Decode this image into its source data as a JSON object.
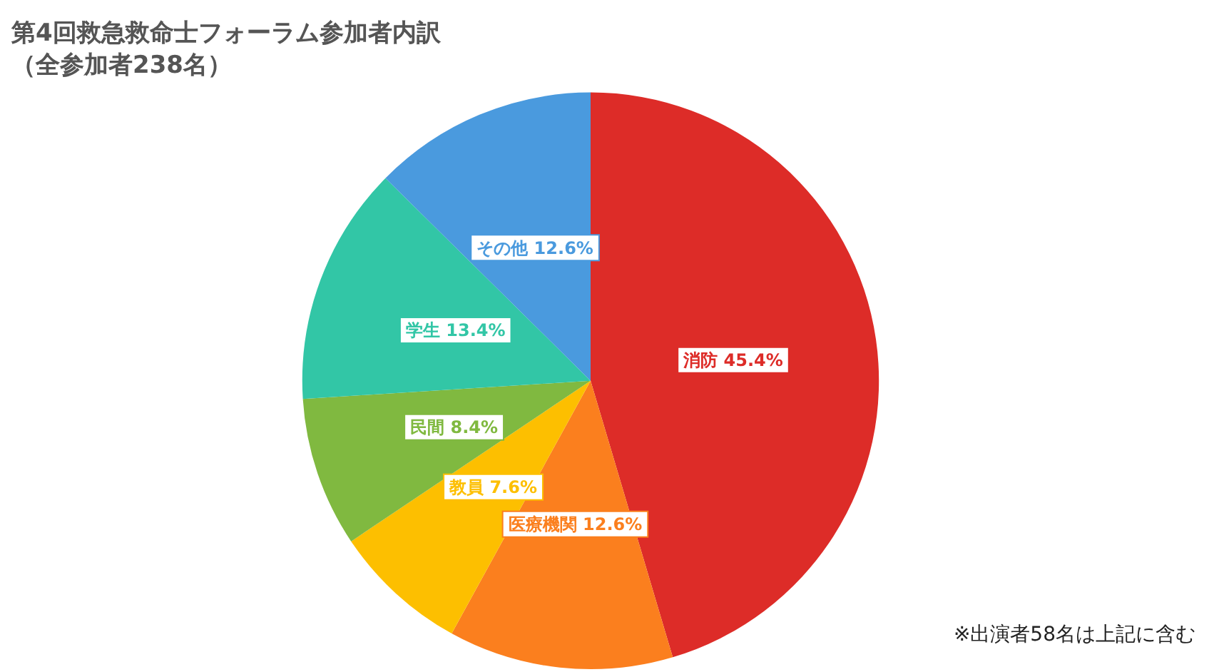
{
  "chart_data": {
    "type": "pie",
    "title": "第4回救急救命士フォーラム参加者内訳",
    "subtitle": "（全参加者238名）",
    "categories": [
      "消防",
      "医療機関",
      "教員",
      "民間",
      "学生",
      "その他"
    ],
    "values": [
      45.4,
      12.6,
      7.6,
      8.4,
      13.4,
      12.6
    ],
    "value_labels": [
      "45.4%",
      "12.6%",
      "7.6%",
      "8.4%",
      "13.4%",
      "12.6%"
    ],
    "colors": [
      "#dd2c28",
      "#fb7f1e",
      "#fdbf00",
      "#80b940",
      "#32c6a6",
      "#4a9ade"
    ],
    "legend": false,
    "annotations": [
      "※出演者58名は上記に含む"
    ]
  }
}
